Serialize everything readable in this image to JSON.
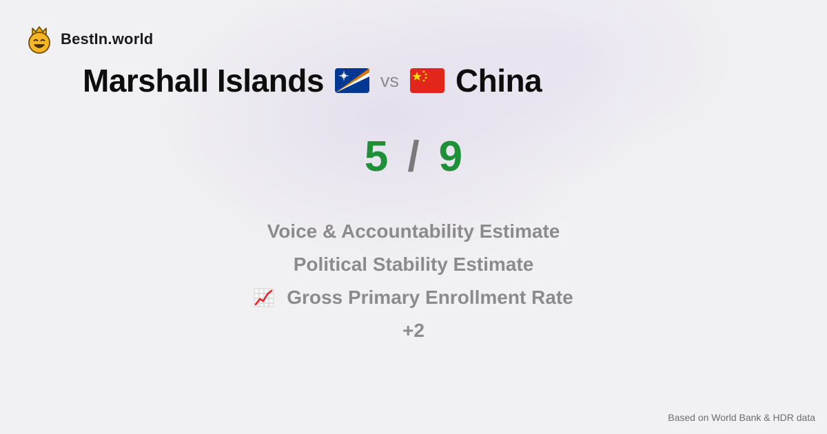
{
  "brand": {
    "name": "BestIn.world",
    "icon": "crown-face-icon"
  },
  "comparison": {
    "left_country": "Marshall Islands",
    "left_flag": "marshall-islands-flag-icon",
    "vs_label": "vs",
    "right_country": "China",
    "right_flag": "china-flag-icon"
  },
  "score": {
    "left": "5",
    "separator": "/",
    "right": "9",
    "color": "#1e9038"
  },
  "metrics": [
    {
      "label": "Voice & Accountability Estimate",
      "icon": ""
    },
    {
      "label": "Political Stability Estimate",
      "icon": ""
    },
    {
      "label": "Gross Primary Enrollment Rate",
      "icon": "chart-increasing-icon"
    },
    {
      "label": "+2",
      "icon": ""
    }
  ],
  "footer": {
    "source": "Based on World Bank & HDR data"
  }
}
